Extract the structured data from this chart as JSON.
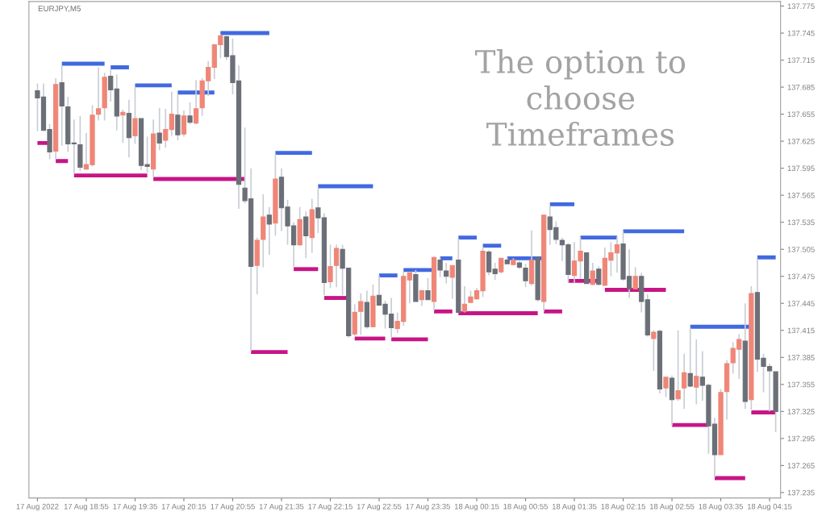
{
  "chart_data": {
    "type": "candlestick",
    "title": "EURJPY,M5",
    "annotations": [
      "The option to\nchoose\nTimeframes"
    ],
    "x": [
      "2022-08-17T18:15",
      "2022-08-17T18:20",
      "2022-08-17T18:25",
      "2022-08-17T18:30",
      "2022-08-17T18:35",
      "2022-08-17T18:40",
      "2022-08-17T18:45",
      "2022-08-17T18:50",
      "2022-08-17T18:55",
      "2022-08-17T19:00",
      "2022-08-17T19:05",
      "2022-08-17T19:10",
      "2022-08-17T19:15",
      "2022-08-17T19:20",
      "2022-08-17T19:25",
      "2022-08-17T19:30",
      "2022-08-17T19:35",
      "2022-08-17T19:40",
      "2022-08-17T19:45",
      "2022-08-17T19:50",
      "2022-08-17T19:55",
      "2022-08-17T20:00",
      "2022-08-17T20:05",
      "2022-08-17T20:10",
      "2022-08-17T20:15",
      "2022-08-17T20:20",
      "2022-08-17T20:25",
      "2022-08-17T20:30",
      "2022-08-17T20:35",
      "2022-08-17T20:40",
      "2022-08-17T20:45",
      "2022-08-17T20:50",
      "2022-08-17T20:55",
      "2022-08-17T21:00",
      "2022-08-17T21:05",
      "2022-08-17T21:10",
      "2022-08-17T21:15",
      "2022-08-17T21:20",
      "2022-08-17T21:25",
      "2022-08-17T21:30",
      "2022-08-17T21:35",
      "2022-08-17T21:40",
      "2022-08-17T21:45",
      "2022-08-17T21:50",
      "2022-08-17T21:55",
      "2022-08-17T22:00",
      "2022-08-17T22:05",
      "2022-08-17T22:10",
      "2022-08-17T22:15",
      "2022-08-17T22:20",
      "2022-08-17T22:25",
      "2022-08-17T22:30",
      "2022-08-17T22:35",
      "2022-08-17T22:40",
      "2022-08-17T22:45",
      "2022-08-17T22:50",
      "2022-08-17T22:55",
      "2022-08-17T23:00",
      "2022-08-17T23:05",
      "2022-08-17T23:10",
      "2022-08-17T23:15",
      "2022-08-17T23:20",
      "2022-08-17T23:25",
      "2022-08-17T23:30",
      "2022-08-17T23:35",
      "2022-08-17T23:40",
      "2022-08-17T23:45",
      "2022-08-17T23:50",
      "2022-08-17T23:55",
      "2022-08-18T00:00",
      "2022-08-18T00:05",
      "2022-08-18T00:10",
      "2022-08-18T00:15",
      "2022-08-18T00:20",
      "2022-08-18T00:25",
      "2022-08-18T00:30",
      "2022-08-18T00:35",
      "2022-08-18T00:40",
      "2022-08-18T00:45",
      "2022-08-18T00:50",
      "2022-08-18T00:55",
      "2022-08-18T01:00",
      "2022-08-18T01:05",
      "2022-08-18T01:10",
      "2022-08-18T01:15",
      "2022-08-18T01:20",
      "2022-08-18T01:25",
      "2022-08-18T01:30",
      "2022-08-18T01:35",
      "2022-08-18T01:40",
      "2022-08-18T01:45",
      "2022-08-18T01:50",
      "2022-08-18T01:55",
      "2022-08-18T02:00",
      "2022-08-18T02:05",
      "2022-08-18T02:10",
      "2022-08-18T02:15",
      "2022-08-18T02:20",
      "2022-08-18T02:25",
      "2022-08-18T02:30",
      "2022-08-18T02:35",
      "2022-08-18T02:40",
      "2022-08-18T02:45",
      "2022-08-18T02:50",
      "2022-08-18T02:55",
      "2022-08-18T03:00",
      "2022-08-18T03:05",
      "2022-08-18T03:10",
      "2022-08-18T03:15",
      "2022-08-18T03:20",
      "2022-08-18T03:25",
      "2022-08-18T03:30",
      "2022-08-18T03:35",
      "2022-08-18T03:40",
      "2022-08-18T03:45",
      "2022-08-18T03:50",
      "2022-08-18T03:55",
      "2022-08-18T04:00",
      "2022-08-18T04:05",
      "2022-08-18T04:10",
      "2022-08-18T04:15",
      "2022-08-18T04:20"
    ],
    "ohlc": [
      [
        137.681,
        137.689,
        137.636,
        137.673
      ],
      [
        137.674,
        137.689,
        137.637,
        137.637
      ],
      [
        137.638,
        137.644,
        137.605,
        137.613
      ],
      [
        137.614,
        137.695,
        137.605,
        137.688
      ],
      [
        137.69,
        137.709,
        137.62,
        137.664
      ],
      [
        137.663,
        137.674,
        137.613,
        137.622
      ],
      [
        137.623,
        137.649,
        137.589,
        137.622
      ],
      [
        137.621,
        137.653,
        137.592,
        137.596
      ],
      [
        137.594,
        137.634,
        137.593,
        137.599
      ],
      [
        137.599,
        137.665,
        137.597,
        137.654
      ],
      [
        137.655,
        137.707,
        137.648,
        137.661
      ],
      [
        137.662,
        137.701,
        137.648,
        137.696
      ],
      [
        137.697,
        137.705,
        137.669,
        137.682
      ],
      [
        137.683,
        137.699,
        137.637,
        137.653
      ],
      [
        137.654,
        137.66,
        137.623,
        137.657
      ],
      [
        137.656,
        137.671,
        137.607,
        137.629
      ],
      [
        137.631,
        137.685,
        137.622,
        137.65
      ],
      [
        137.65,
        137.65,
        137.593,
        137.598
      ],
      [
        137.599,
        137.63,
        137.59,
        137.597
      ],
      [
        137.594,
        137.649,
        137.585,
        137.633
      ],
      [
        137.634,
        137.662,
        137.615,
        137.623
      ],
      [
        137.626,
        137.661,
        137.618,
        137.638
      ],
      [
        137.638,
        137.68,
        137.631,
        137.655
      ],
      [
        137.654,
        137.677,
        137.626,
        137.632
      ],
      [
        137.633,
        137.659,
        137.63,
        137.653
      ],
      [
        137.653,
        137.668,
        137.644,
        137.646
      ],
      [
        137.645,
        137.693,
        137.644,
        137.661
      ],
      [
        137.662,
        137.695,
        137.653,
        137.692
      ],
      [
        137.692,
        137.714,
        137.675,
        137.707
      ],
      [
        137.707,
        137.733,
        137.694,
        137.732
      ],
      [
        137.732,
        137.743,
        137.717,
        137.742
      ],
      [
        137.741,
        137.743,
        137.715,
        137.719
      ],
      [
        137.72,
        137.739,
        137.677,
        137.69
      ],
      [
        137.692,
        137.709,
        137.55,
        137.577
      ],
      [
        137.573,
        137.64,
        137.556,
        137.559
      ],
      [
        137.561,
        137.595,
        137.392,
        137.486
      ],
      [
        137.487,
        137.518,
        137.455,
        137.515
      ],
      [
        137.516,
        137.566,
        137.485,
        137.541
      ],
      [
        137.543,
        137.552,
        137.499,
        137.533
      ],
      [
        137.534,
        137.611,
        137.52,
        137.583
      ],
      [
        137.585,
        137.595,
        137.525,
        137.551
      ],
      [
        137.552,
        137.56,
        137.51,
        137.531
      ],
      [
        137.531,
        137.535,
        137.485,
        137.51
      ],
      [
        137.51,
        137.552,
        137.509,
        137.538
      ],
      [
        137.541,
        137.547,
        137.495,
        137.52
      ],
      [
        137.518,
        137.561,
        137.501,
        137.549
      ],
      [
        137.551,
        137.573,
        137.523,
        137.54
      ],
      [
        137.54,
        137.545,
        137.454,
        137.468
      ],
      [
        137.469,
        137.51,
        137.462,
        137.486
      ],
      [
        137.487,
        137.51,
        137.463,
        137.506
      ],
      [
        137.505,
        137.51,
        137.454,
        137.484
      ],
      [
        137.484,
        137.484,
        137.407,
        137.409
      ],
      [
        137.411,
        137.444,
        137.409,
        137.435
      ],
      [
        137.436,
        137.456,
        137.41,
        137.447
      ],
      [
        137.446,
        137.459,
        137.417,
        137.419
      ],
      [
        137.419,
        137.466,
        137.419,
        137.453
      ],
      [
        137.454,
        137.476,
        137.442,
        137.443
      ],
      [
        137.444,
        137.448,
        137.417,
        137.433
      ],
      [
        137.433,
        137.451,
        137.407,
        137.418
      ],
      [
        137.417,
        137.435,
        137.412,
        137.425
      ],
      [
        137.425,
        137.48,
        137.42,
        137.475
      ],
      [
        137.471,
        137.48,
        137.445,
        137.479
      ],
      [
        137.477,
        137.482,
        137.447,
        137.447
      ],
      [
        137.449,
        137.46,
        137.442,
        137.459
      ],
      [
        137.459,
        137.473,
        137.449,
        137.449
      ],
      [
        137.447,
        137.497,
        137.437,
        137.496
      ],
      [
        137.493,
        137.496,
        137.474,
        137.482
      ],
      [
        137.481,
        137.49,
        137.467,
        137.475
      ],
      [
        137.474,
        137.487,
        137.45,
        137.487
      ],
      [
        137.493,
        137.517,
        137.435,
        137.435
      ],
      [
        137.436,
        137.464,
        137.435,
        137.444
      ],
      [
        137.446,
        137.459,
        137.446,
        137.452
      ],
      [
        137.45,
        137.462,
        137.449,
        137.459
      ],
      [
        137.459,
        137.508,
        137.452,
        137.503
      ],
      [
        137.502,
        137.504,
        137.476,
        137.48
      ],
      [
        137.483,
        137.49,
        137.471,
        137.478
      ],
      [
        137.48,
        137.495,
        137.478,
        137.495
      ],
      [
        137.493,
        137.496,
        137.489,
        137.489
      ],
      [
        137.488,
        137.495,
        137.487,
        137.493
      ],
      [
        137.49,
        137.492,
        137.483,
        137.485
      ],
      [
        137.484,
        137.489,
        137.463,
        137.47
      ],
      [
        137.467,
        137.526,
        137.465,
        137.493
      ],
      [
        137.496,
        137.496,
        137.447,
        137.449
      ],
      [
        137.447,
        137.543,
        137.436,
        137.543
      ],
      [
        137.541,
        137.553,
        137.51,
        137.527
      ],
      [
        137.529,
        137.536,
        137.511,
        137.516
      ],
      [
        137.515,
        137.518,
        137.492,
        137.51
      ],
      [
        137.51,
        137.512,
        137.468,
        137.477
      ],
      [
        137.476,
        137.513,
        137.467,
        137.492
      ],
      [
        137.492,
        137.518,
        137.472,
        137.503
      ],
      [
        137.501,
        137.501,
        137.467,
        137.467
      ],
      [
        137.466,
        137.49,
        137.465,
        137.481
      ],
      [
        137.483,
        137.486,
        137.465,
        137.466
      ],
      [
        137.465,
        137.507,
        137.465,
        137.495
      ],
      [
        137.493,
        137.513,
        137.475,
        137.501
      ],
      [
        137.501,
        137.519,
        137.479,
        137.51
      ],
      [
        137.511,
        137.525,
        137.47,
        137.472
      ],
      [
        137.475,
        137.505,
        137.451,
        137.461
      ],
      [
        137.461,
        137.485,
        137.461,
        137.475
      ],
      [
        137.475,
        137.479,
        137.435,
        137.447
      ],
      [
        137.449,
        137.455,
        137.408,
        137.41
      ],
      [
        137.406,
        137.415,
        137.37,
        137.413
      ],
      [
        137.414,
        137.416,
        137.345,
        137.35
      ],
      [
        137.351,
        137.363,
        137.341,
        137.363
      ],
      [
        137.362,
        137.365,
        137.309,
        137.338
      ],
      [
        137.339,
        137.415,
        137.337,
        137.348
      ],
      [
        137.351,
        137.389,
        137.328,
        137.368
      ],
      [
        137.367,
        137.418,
        137.352,
        137.353
      ],
      [
        137.352,
        137.405,
        137.333,
        137.364
      ],
      [
        137.363,
        137.392,
        137.337,
        137.354
      ],
      [
        137.354,
        137.356,
        137.278,
        137.309
      ],
      [
        137.311,
        137.318,
        137.252,
        137.277
      ],
      [
        137.277,
        137.35,
        137.277,
        137.346
      ],
      [
        137.347,
        137.382,
        137.316,
        137.378
      ],
      [
        137.379,
        137.402,
        137.367,
        137.395
      ],
      [
        137.394,
        137.411,
        137.361,
        137.405
      ],
      [
        137.403,
        137.445,
        137.328,
        137.336
      ],
      [
        137.338,
        137.464,
        137.327,
        137.456
      ],
      [
        137.457,
        137.495,
        137.369,
        137.383
      ],
      [
        137.384,
        137.389,
        137.346,
        137.375
      ],
      [
        137.375,
        137.378,
        137.325,
        137.37
      ],
      [
        137.369,
        137.369,
        137.302,
        137.325
      ]
    ],
    "colors": [
      "#6b6f77",
      "#6b6f77",
      "#6b6f77",
      "#ef8677",
      "#6b6f77",
      "#6b6f77",
      "#6b6f77",
      "#6b6f77",
      "#ef8677",
      "#ef8677",
      "#ef8677",
      "#ef8677",
      "#6b6f77",
      "#6b6f77",
      "#ef8677",
      "#6b6f77",
      "#ef8677",
      "#6b6f77",
      "#6b6f77",
      "#ef8677",
      "#6b6f77",
      "#ef8677",
      "#ef8677",
      "#6b6f77",
      "#ef8677",
      "#6b6f77",
      "#ef8677",
      "#ef8677",
      "#ef8677",
      "#ef8677",
      "#ef8677",
      "#6b6f77",
      "#6b6f77",
      "#6b6f77",
      "#6b6f77",
      "#6b6f77",
      "#ef8677",
      "#ef8677",
      "#6b6f77",
      "#ef8677",
      "#6b6f77",
      "#6b6f77",
      "#6b6f77",
      "#ef8677",
      "#6b6f77",
      "#ef8677",
      "#6b6f77",
      "#6b6f77",
      "#ef8677",
      "#ef8677",
      "#6b6f77",
      "#6b6f77",
      "#ef8677",
      "#ef8677",
      "#6b6f77",
      "#ef8677",
      "#6b6f77",
      "#6b6f77",
      "#6b6f77",
      "#ef8677",
      "#ef8677",
      "#ef8677",
      "#6b6f77",
      "#ef8677",
      "#6b6f77",
      "#ef8677",
      "#6b6f77",
      "#6b6f77",
      "#ef8677",
      "#6b6f77",
      "#ef8677",
      "#ef8677",
      "#ef8677",
      "#ef8677",
      "#6b6f77",
      "#6b6f77",
      "#ef8677",
      "#6b6f77",
      "#ef8677",
      "#6b6f77",
      "#6b6f77",
      "#ef8677",
      "#6b6f77",
      "#ef8677",
      "#6b6f77",
      "#6b6f77",
      "#6b6f77",
      "#6b6f77",
      "#ef8677",
      "#ef8677",
      "#6b6f77",
      "#ef8677",
      "#6b6f77",
      "#ef8677",
      "#ef8677",
      "#ef8677",
      "#6b6f77",
      "#6b6f77",
      "#ef8677",
      "#6b6f77",
      "#6b6f77",
      "#ef8677",
      "#6b6f77",
      "#ef8677",
      "#6b6f77",
      "#ef8677",
      "#ef8677",
      "#6b6f77",
      "#ef8677",
      "#6b6f77",
      "#6b6f77",
      "#6b6f77",
      "#ef8677",
      "#ef8677",
      "#ef8677",
      "#ef8677",
      "#6b6f77",
      "#ef8677",
      "#6b6f77",
      "#6b6f77",
      "#6b6f77",
      "#6b6f77"
    ],
    "series": [
      {
        "type": "line",
        "color": "#4169e1",
        "x": [
          "2022-08-17T18:35",
          "2022-08-17T19:10"
        ],
        "values": [
          137.711,
          137.711
        ]
      },
      {
        "type": "line",
        "color": "#4169e1",
        "x": [
          "2022-08-17T19:15",
          "2022-08-17T19:30"
        ],
        "values": [
          137.707,
          137.707
        ]
      },
      {
        "type": "line",
        "color": "#4169e1",
        "x": [
          "2022-08-17T19:35",
          "2022-08-17T20:05"
        ],
        "values": [
          137.687,
          137.687
        ]
      },
      {
        "type": "line",
        "color": "#4169e1",
        "x": [
          "2022-08-17T20:10",
          "2022-08-17T20:40"
        ],
        "values": [
          137.679,
          137.679
        ]
      },
      {
        "type": "line",
        "color": "#4169e1",
        "x": [
          "2022-08-17T20:45",
          "2022-08-17T21:25"
        ],
        "values": [
          137.745,
          137.745
        ]
      },
      {
        "type": "line",
        "color": "#4169e1",
        "x": [
          "2022-08-17T21:30",
          "2022-08-17T22:00"
        ],
        "values": [
          137.612,
          137.612
        ]
      },
      {
        "type": "line",
        "color": "#4169e1",
        "x": [
          "2022-08-17T22:05",
          "2022-08-17T22:50"
        ],
        "values": [
          137.575,
          137.575
        ]
      },
      {
        "type": "line",
        "color": "#4169e1",
        "x": [
          "2022-08-17T22:55",
          "2022-08-17T23:10"
        ],
        "values": [
          137.476,
          137.476
        ]
      },
      {
        "type": "line",
        "color": "#4169e1",
        "x": [
          "2022-08-17T23:15",
          "2022-08-17T23:40"
        ],
        "values": [
          137.482,
          137.482
        ]
      },
      {
        "type": "line",
        "color": "#4169e1",
        "x": [
          "2022-08-17T23:45",
          "2022-08-17T23:55"
        ],
        "values": [
          137.495,
          137.495
        ]
      },
      {
        "type": "line",
        "color": "#4169e1",
        "x": [
          "2022-08-18T00:00",
          "2022-08-18T00:15"
        ],
        "values": [
          137.518,
          137.518
        ]
      },
      {
        "type": "line",
        "color": "#4169e1",
        "x": [
          "2022-08-18T00:20",
          "2022-08-18T00:35"
        ],
        "values": [
          137.509,
          137.509
        ]
      },
      {
        "type": "line",
        "color": "#4169e1",
        "x": [
          "2022-08-18T00:40",
          "2022-08-18T01:10"
        ],
        "values": [
          137.495,
          137.495
        ]
      },
      {
        "type": "line",
        "color": "#4169e1",
        "x": [
          "2022-08-18T01:15",
          "2022-08-18T01:35"
        ],
        "values": [
          137.555,
          137.555
        ]
      },
      {
        "type": "line",
        "color": "#4169e1",
        "x": [
          "2022-08-18T01:40",
          "2022-08-18T02:10"
        ],
        "values": [
          137.518,
          137.518
        ]
      },
      {
        "type": "line",
        "color": "#4169e1",
        "x": [
          "2022-08-18T02:15",
          "2022-08-18T03:05"
        ],
        "values": [
          137.525,
          137.525
        ]
      },
      {
        "type": "line",
        "color": "#4169e1",
        "x": [
          "2022-08-18T03:10",
          "2022-08-18T04:00"
        ],
        "values": [
          137.419,
          137.419
        ]
      },
      {
        "type": "line",
        "color": "#4169e1",
        "x": [
          "2022-08-18T04:05",
          "2022-08-18T04:20"
        ],
        "values": [
          137.496,
          137.496
        ]
      },
      {
        "type": "line",
        "color": "#c71585",
        "x": [
          "2022-08-17T18:15",
          "2022-08-17T18:25"
        ],
        "values": [
          137.623,
          137.623
        ]
      },
      {
        "type": "line",
        "color": "#c71585",
        "x": [
          "2022-08-17T18:30",
          "2022-08-17T18:40"
        ],
        "values": [
          137.603,
          137.603
        ]
      },
      {
        "type": "line",
        "color": "#c71585",
        "x": [
          "2022-08-17T18:45",
          "2022-08-17T19:45"
        ],
        "values": [
          137.587,
          137.587
        ]
      },
      {
        "type": "line",
        "color": "#c71585",
        "x": [
          "2022-08-17T19:50",
          "2022-08-17T21:05"
        ],
        "values": [
          137.583,
          137.583
        ]
      },
      {
        "type": "line",
        "color": "#c71585",
        "x": [
          "2022-08-17T21:10",
          "2022-08-17T21:40"
        ],
        "values": [
          137.391,
          137.391
        ]
      },
      {
        "type": "line",
        "color": "#c71585",
        "x": [
          "2022-08-17T21:45",
          "2022-08-17T22:05"
        ],
        "values": [
          137.483,
          137.483
        ]
      },
      {
        "type": "line",
        "color": "#c71585",
        "x": [
          "2022-08-17T22:10",
          "2022-08-17T22:30"
        ],
        "values": [
          137.451,
          137.451
        ]
      },
      {
        "type": "line",
        "color": "#c71585",
        "x": [
          "2022-08-17T22:35",
          "2022-08-17T23:00"
        ],
        "values": [
          137.406,
          137.406
        ]
      },
      {
        "type": "line",
        "color": "#c71585",
        "x": [
          "2022-08-17T23:05",
          "2022-08-17T23:35"
        ],
        "values": [
          137.405,
          137.405
        ]
      },
      {
        "type": "line",
        "color": "#c71585",
        "x": [
          "2022-08-17T23:40",
          "2022-08-17T23:55"
        ],
        "values": [
          137.436,
          137.436
        ]
      },
      {
        "type": "line",
        "color": "#c71585",
        "x": [
          "2022-08-18T00:00",
          "2022-08-18T01:05"
        ],
        "values": [
          137.434,
          137.434
        ]
      },
      {
        "type": "line",
        "color": "#c71585",
        "x": [
          "2022-08-18T01:10",
          "2022-08-18T01:25"
        ],
        "values": [
          137.436,
          137.436
        ]
      },
      {
        "type": "line",
        "color": "#c71585",
        "x": [
          "2022-08-18T01:30",
          "2022-08-18T01:55"
        ],
        "values": [
          137.47,
          137.47
        ]
      },
      {
        "type": "line",
        "color": "#c71585",
        "x": [
          "2022-08-18T02:00",
          "2022-08-18T02:50"
        ],
        "values": [
          137.46,
          137.46
        ]
      },
      {
        "type": "line",
        "color": "#c71585",
        "x": [
          "2022-08-18T02:55",
          "2022-08-18T03:25"
        ],
        "values": [
          137.31,
          137.31
        ]
      },
      {
        "type": "line",
        "color": "#c71585",
        "x": [
          "2022-08-18T03:30",
          "2022-08-18T03:55"
        ],
        "values": [
          137.251,
          137.251
        ]
      },
      {
        "type": "line",
        "color": "#c71585",
        "x": [
          "2022-08-18T04:00",
          "2022-08-18T04:20"
        ],
        "values": [
          137.324,
          137.324
        ]
      }
    ],
    "xlim": [
      "2022-08-17T18:08",
      "2022-08-18T04:24"
    ],
    "xticks": [
      {
        "value": "2022-08-17T18:15",
        "label": "17 Aug 2022"
      },
      {
        "value": "2022-08-17T18:55",
        "label": "17 Aug 18:55"
      },
      {
        "value": "2022-08-17T19:35",
        "label": "17 Aug 19:35"
      },
      {
        "value": "2022-08-17T20:15",
        "label": "17 Aug 20:15"
      },
      {
        "value": "2022-08-17T20:55",
        "label": "17 Aug 20:55"
      },
      {
        "value": "2022-08-17T21:35",
        "label": "17 Aug 21:35"
      },
      {
        "value": "2022-08-17T22:15",
        "label": "17 Aug 22:15"
      },
      {
        "value": "2022-08-17T22:55",
        "label": "17 Aug 22:55"
      },
      {
        "value": "2022-08-17T23:35",
        "label": "17 Aug 23:35"
      },
      {
        "value": "2022-08-18T00:15",
        "label": "18 Aug 00:15"
      },
      {
        "value": "2022-08-18T00:55",
        "label": "18 Aug 00:55"
      },
      {
        "value": "2022-08-18T01:35",
        "label": "18 Aug 01:35"
      },
      {
        "value": "2022-08-18T02:15",
        "label": "18 Aug 02:15"
      },
      {
        "value": "2022-08-18T02:55",
        "label": "18 Aug 02:55"
      },
      {
        "value": "2022-08-18T03:35",
        "label": "18 Aug 03:35"
      },
      {
        "value": "2022-08-18T04:15",
        "label": "18 Aug 04:15"
      }
    ],
    "ylim": [
      137.229,
      137.78
    ],
    "yticks": [
      {
        "value": 137.235,
        "label": "137.235"
      },
      {
        "value": 137.265,
        "label": "137.265"
      },
      {
        "value": 137.295,
        "label": "137.295"
      },
      {
        "value": 137.325,
        "label": "137.325"
      },
      {
        "value": 137.355,
        "label": "137.355"
      },
      {
        "value": 137.385,
        "label": "137.385"
      },
      {
        "value": 137.415,
        "label": "137.415"
      },
      {
        "value": 137.445,
        "label": "137.445"
      },
      {
        "value": 137.475,
        "label": "137.475"
      },
      {
        "value": 137.505,
        "label": "137.505"
      },
      {
        "value": 137.535,
        "label": "137.535"
      },
      {
        "value": 137.565,
        "label": "137.565"
      },
      {
        "value": 137.595,
        "label": "137.595"
      },
      {
        "value": 137.625,
        "label": "137.625"
      },
      {
        "value": 137.655,
        "label": "137.655"
      },
      {
        "value": 137.685,
        "label": "137.685"
      },
      {
        "value": 137.715,
        "label": "137.715"
      },
      {
        "value": 137.745,
        "label": "137.745"
      },
      {
        "value": 137.775,
        "label": "137.775"
      }
    ]
  }
}
